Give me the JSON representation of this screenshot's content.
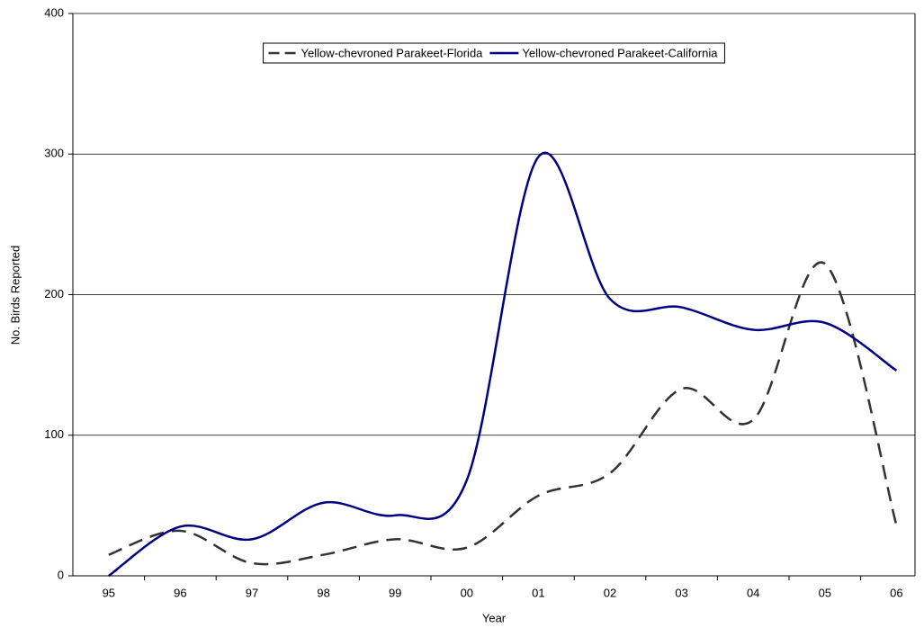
{
  "chart_data": {
    "type": "line",
    "x_label": "Year",
    "y_label": "No. Birds Reported",
    "categories": [
      "95",
      "96",
      "97",
      "98",
      "99",
      "00",
      "01",
      "02",
      "03",
      "04",
      "05",
      "06"
    ],
    "series": [
      {
        "name": "Yellow-chevroned Parakeet-Florida",
        "color": "#333333",
        "dashed": true,
        "values": [
          15,
          32,
          9,
          15,
          26,
          20,
          57,
          73,
          133,
          111,
          222,
          36
        ]
      },
      {
        "name": "Yellow-chevroned Parakeet-California",
        "color": "#000080",
        "dashed": false,
        "values": [
          0,
          35,
          26,
          52,
          43,
          68,
          298,
          197,
          191,
          175,
          180,
          146
        ]
      }
    ],
    "ylim": [
      0,
      400
    ],
    "yticks": [
      0,
      100,
      200,
      300,
      400
    ],
    "grid": true,
    "smooth": true,
    "legend": "top"
  }
}
